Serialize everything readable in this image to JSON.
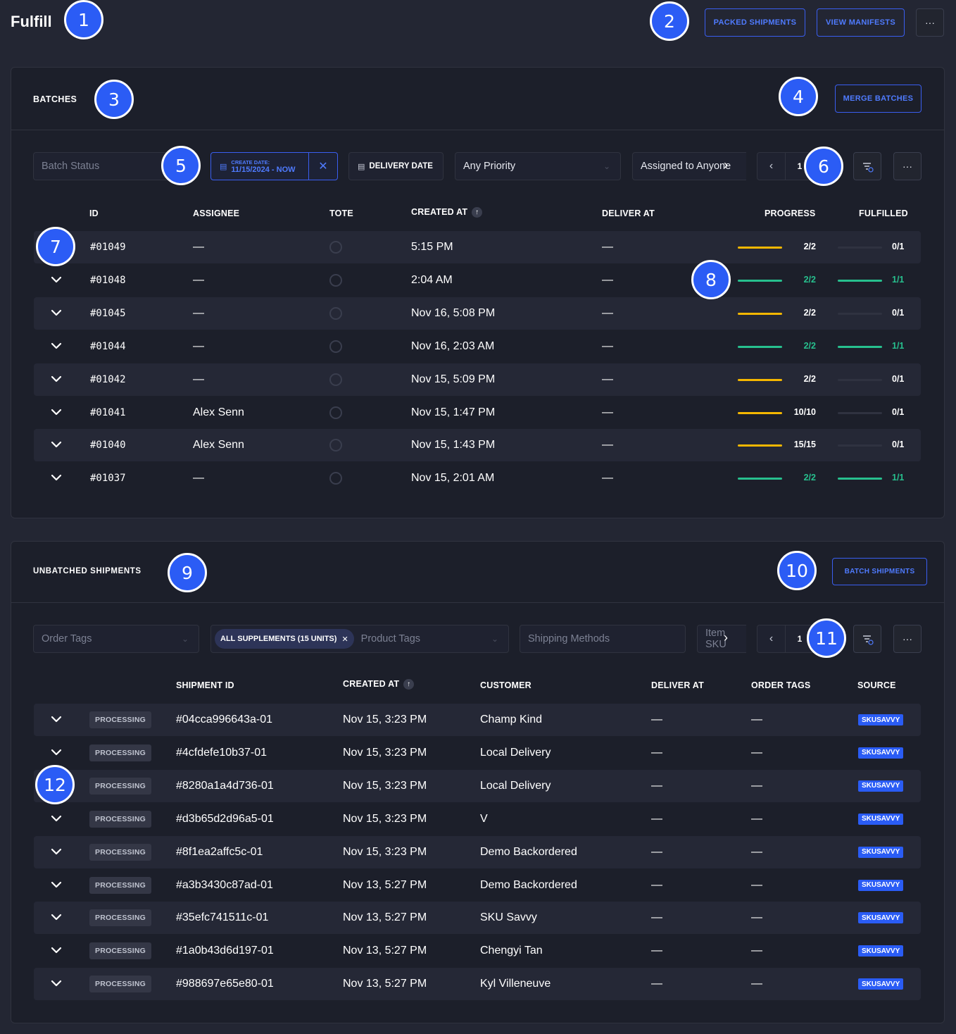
{
  "header": {
    "title": "Fulfill",
    "packed_shipments_label": "PACKED SHIPMENTS",
    "view_manifests_label": "VIEW MANIFESTS",
    "more_label": "···"
  },
  "markers": [
    "1",
    "2",
    "3",
    "4",
    "5",
    "6",
    "7",
    "8",
    "9",
    "10",
    "11",
    "12"
  ],
  "batches": {
    "title": "BATCHES",
    "merge_label": "MERGE BATCHES",
    "filters": {
      "batch_status_placeholder": "Batch Status",
      "create_date_label": "CREATE DATE:",
      "create_date_value": "11/15/2024 - NOW",
      "delivery_date_label": "DELIVERY DATE",
      "priority_value": "Any Priority",
      "assigned_value": "Assigned to Anyone",
      "page": "1",
      "more_label": "···"
    },
    "columns": [
      "ID",
      "ASSIGNEE",
      "TOTE",
      "CREATED AT",
      "DELIVER AT",
      "PROGRESS",
      "FULFILLED"
    ],
    "rows": [
      {
        "id": "#01049",
        "assignee": "—",
        "created": "5:15 PM",
        "deliver": "—",
        "progress": "2/2",
        "progress_pct": 1,
        "progress_color": "#f5b700",
        "fulfilled": "0/1",
        "fulfilled_pct": 0,
        "fulfilled_color": "#2f3240"
      },
      {
        "id": "#01048",
        "assignee": "—",
        "created": "2:04 AM",
        "deliver": "—",
        "progress": "2/2",
        "progress_pct": 1,
        "progress_color": "#27c08e",
        "fulfilled": "1/1",
        "fulfilled_pct": 1,
        "fulfilled_color": "#27c08e"
      },
      {
        "id": "#01045",
        "assignee": "—",
        "created": "Nov 16, 5:08 PM",
        "deliver": "—",
        "progress": "2/2",
        "progress_pct": 1,
        "progress_color": "#f5b700",
        "fulfilled": "0/1",
        "fulfilled_pct": 0,
        "fulfilled_color": "#2f3240"
      },
      {
        "id": "#01044",
        "assignee": "—",
        "created": "Nov 16, 2:03 AM",
        "deliver": "—",
        "progress": "2/2",
        "progress_pct": 1,
        "progress_color": "#27c08e",
        "fulfilled": "1/1",
        "fulfilled_pct": 1,
        "fulfilled_color": "#27c08e"
      },
      {
        "id": "#01042",
        "assignee": "—",
        "created": "Nov 15, 5:09 PM",
        "deliver": "—",
        "progress": "2/2",
        "progress_pct": 1,
        "progress_color": "#f5b700",
        "fulfilled": "0/1",
        "fulfilled_pct": 0,
        "fulfilled_color": "#2f3240"
      },
      {
        "id": "#01041",
        "assignee": "Alex Senn",
        "created": "Nov 15, 1:47 PM",
        "deliver": "—",
        "progress": "10/10",
        "progress_pct": 1,
        "progress_color": "#f5b700",
        "fulfilled": "0/1",
        "fulfilled_pct": 0,
        "fulfilled_color": "#2f3240"
      },
      {
        "id": "#01040",
        "assignee": "Alex Senn",
        "created": "Nov 15, 1:43 PM",
        "deliver": "—",
        "progress": "15/15",
        "progress_pct": 1,
        "progress_color": "#f5b700",
        "fulfilled": "0/1",
        "fulfilled_pct": 0,
        "fulfilled_color": "#2f3240"
      },
      {
        "id": "#01037",
        "assignee": "—",
        "created": "Nov 15, 2:01 AM",
        "deliver": "—",
        "progress": "2/2",
        "progress_pct": 1,
        "progress_color": "#27c08e",
        "fulfilled": "1/1",
        "fulfilled_pct": 1,
        "fulfilled_color": "#27c08e"
      }
    ]
  },
  "unbatched": {
    "title": "UNBATCHED SHIPMENTS",
    "batch_label": "BATCH SHIPMENTS",
    "filters": {
      "order_tags_placeholder": "Order Tags",
      "product_tag_chip": "ALL SUPPLEMENTS (15 UNITS)",
      "product_tags_placeholder": "Product Tags",
      "shipping_methods_placeholder": "Shipping Methods",
      "item_sku_placeholder": "Item SKU",
      "page": "1",
      "more_label": "···"
    },
    "columns": [
      "SHIPMENT ID",
      "CREATED AT",
      "CUSTOMER",
      "DELIVER AT",
      "ORDER TAGS",
      "SOURCE"
    ],
    "rows": [
      {
        "status": "PROCESSING",
        "id": "#04cca996643a-01",
        "created": "Nov 15, 3:23 PM",
        "customer": "Champ Kind",
        "deliver": "—",
        "tags": "—",
        "source": "SKUSAVVY"
      },
      {
        "status": "PROCESSING",
        "id": "#4cfdefe10b37-01",
        "created": "Nov 15, 3:23 PM",
        "customer": "Local Delivery",
        "deliver": "—",
        "tags": "—",
        "source": "SKUSAVVY"
      },
      {
        "status": "PROCESSING",
        "id": "#8280a1a4d736-01",
        "created": "Nov 15, 3:23 PM",
        "customer": "Local Delivery",
        "deliver": "—",
        "tags": "—",
        "source": "SKUSAVVY"
      },
      {
        "status": "PROCESSING",
        "id": "#d3b65d2d96a5-01",
        "created": "Nov 15, 3:23 PM",
        "customer": "V",
        "deliver": "—",
        "tags": "—",
        "source": "SKUSAVVY"
      },
      {
        "status": "PROCESSING",
        "id": "#8f1ea2affc5c-01",
        "created": "Nov 15, 3:23 PM",
        "customer": "Demo Backordered",
        "deliver": "—",
        "tags": "—",
        "source": "SKUSAVVY"
      },
      {
        "status": "PROCESSING",
        "id": "#a3b3430c87ad-01",
        "created": "Nov 13, 5:27 PM",
        "customer": "Demo Backordered",
        "deliver": "—",
        "tags": "—",
        "source": "SKUSAVVY"
      },
      {
        "status": "PROCESSING",
        "id": "#35efc741511c-01",
        "created": "Nov 13, 5:27 PM",
        "customer": "SKU Savvy",
        "deliver": "—",
        "tags": "—",
        "source": "SKUSAVVY"
      },
      {
        "status": "PROCESSING",
        "id": "#1a0b43d6d197-01",
        "created": "Nov 13, 5:27 PM",
        "customer": "Chengyi Tan",
        "deliver": "—",
        "tags": "—",
        "source": "SKUSAVVY"
      },
      {
        "status": "PROCESSING",
        "id": "#988697e65e80-01",
        "created": "Nov 13, 5:27 PM",
        "customer": "Kyl Villeneuve",
        "deliver": "—",
        "tags": "—",
        "source": "SKUSAVVY"
      }
    ]
  }
}
